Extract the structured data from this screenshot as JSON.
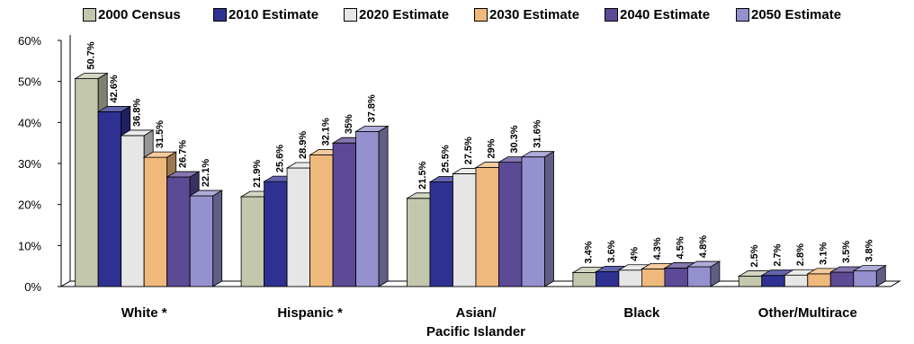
{
  "chart_data": {
    "type": "bar",
    "title": "",
    "xlabel": "",
    "ylabel": "",
    "ylim": [
      0,
      60
    ],
    "yticks": [
      "0%",
      "10%",
      "20%",
      "30%",
      "40%",
      "50%",
      "60%"
    ],
    "legend_position": "top",
    "categories": [
      [
        "White *"
      ],
      [
        "Hispanic *"
      ],
      [
        "Asian/",
        "Pacific Islander"
      ],
      [
        "Black"
      ],
      [
        "Other/Multirace"
      ]
    ],
    "series": [
      {
        "name": "2000 Census",
        "color": "#c3c8ad",
        "values": [
          50.7,
          21.9,
          21.5,
          3.4,
          2.5
        ],
        "labels": [
          "50.7%",
          "21.9%",
          "21.5%",
          "3.4%",
          "2.5%"
        ]
      },
      {
        "name": "2010 Estimate",
        "color": "#2e3192",
        "values": [
          42.6,
          25.6,
          25.5,
          3.6,
          2.7
        ],
        "labels": [
          "42.6%",
          "25.6%",
          "25.5%",
          "3.6%",
          "2.7%"
        ]
      },
      {
        "name": "2020 Estimate",
        "color": "#e6e6e6",
        "values": [
          36.8,
          28.9,
          27.5,
          4.0,
          2.8
        ],
        "labels": [
          "36.8%",
          "28.9%",
          "27.5%",
          "4%",
          "2.8%"
        ]
      },
      {
        "name": "2030 Estimate",
        "color": "#f0b97c",
        "values": [
          31.5,
          32.1,
          29.0,
          4.3,
          3.1
        ],
        "labels": [
          "31.5%",
          "32.1%",
          "29%",
          "4.3%",
          "3.1%"
        ]
      },
      {
        "name": "2040 Estimate",
        "color": "#5c4a97",
        "values": [
          26.7,
          35.0,
          30.3,
          4.5,
          3.5
        ],
        "labels": [
          "26.7%",
          "35%",
          "30.3%",
          "4.5%",
          "3.5%"
        ]
      },
      {
        "name": "2050 Estimate",
        "color": "#9590ce",
        "values": [
          22.1,
          37.8,
          31.6,
          4.8,
          3.8
        ],
        "labels": [
          "22.1%",
          "37.8%",
          "31.6%",
          "4.8%",
          "3.8%"
        ]
      }
    ]
  }
}
